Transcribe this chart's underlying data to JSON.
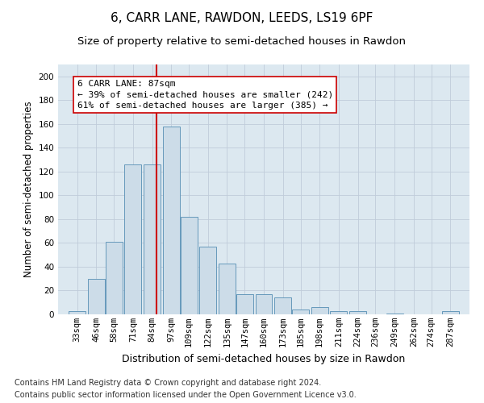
{
  "title": "6, CARR LANE, RAWDON, LEEDS, LS19 6PF",
  "subtitle": "Size of property relative to semi-detached houses in Rawdon",
  "xlabel": "Distribution of semi-detached houses by size in Rawdon",
  "ylabel": "Number of semi-detached properties",
  "footnote1": "Contains HM Land Registry data © Crown copyright and database right 2024.",
  "footnote2": "Contains public sector information licensed under the Open Government Licence v3.0.",
  "annotation_title": "6 CARR LANE: 87sqm",
  "annotation_line1": "← 39% of semi-detached houses are smaller (242)",
  "annotation_line2": "61% of semi-detached houses are larger (385) →",
  "vline_x": 87,
  "ylim": [
    0,
    210
  ],
  "yticks": [
    0,
    20,
    40,
    60,
    80,
    100,
    120,
    140,
    160,
    180,
    200
  ],
  "bar_color": "#ccdce8",
  "bar_edge_color": "#6699bb",
  "vline_color": "#cc0000",
  "background_color": "#dce8f0",
  "grid_color": "#c0ccda",
  "categories": [
    33,
    46,
    58,
    71,
    84,
    97,
    109,
    122,
    135,
    147,
    160,
    173,
    185,
    198,
    211,
    224,
    236,
    249,
    262,
    274,
    287
  ],
  "values": [
    3,
    30,
    61,
    126,
    126,
    158,
    82,
    57,
    43,
    17,
    17,
    14,
    4,
    6,
    3,
    3,
    0,
    1,
    0,
    0,
    3
  ],
  "title_fontsize": 11,
  "subtitle_fontsize": 9.5,
  "xlabel_fontsize": 9,
  "ylabel_fontsize": 8.5,
  "tick_fontsize": 7.5,
  "footnote_fontsize": 7,
  "ann_fontsize": 8
}
